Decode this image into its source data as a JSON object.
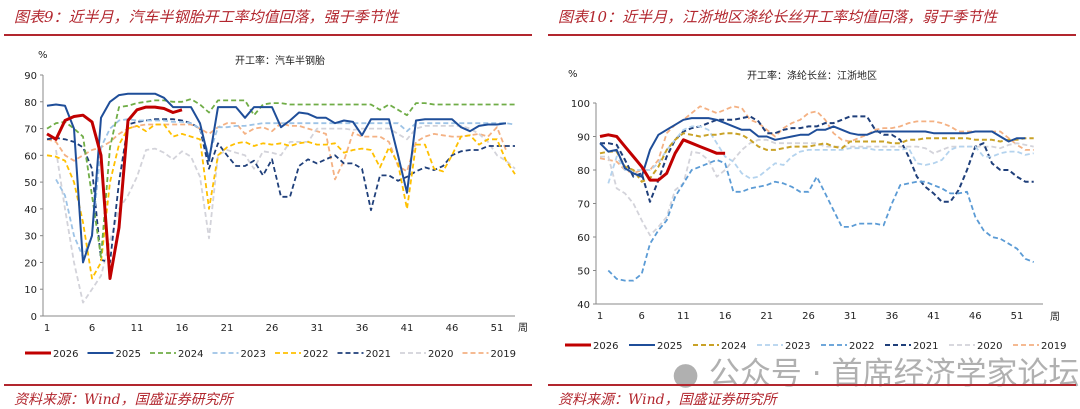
{
  "left": {
    "figure_title": "图表9：近半月，汽车半钢胎开工率均值回落，强于季节性",
    "source": "资料来源：Wind，国盛证券研究所"
  },
  "right": {
    "figure_title": "图表10：近半月，江浙地区涤纶长丝开工率均值回落，弱于季节性",
    "source": "资料来源：Wind，国盛证券研究所"
  },
  "watermark": "公众号 · 首席经济学家论坛",
  "colors": {
    "2026": "#c00000",
    "2025": "#1f4e99",
    "2024": "#70ad47",
    "2023": "#9dc3e6",
    "2022": "#ffc000",
    "2021": "#1f3f7a",
    "2020": "#d3d3da",
    "2019": "#f4b183"
  },
  "chart_data": [
    {
      "type": "line",
      "title": "开工率：汽车半钢胎",
      "ylabel": "%",
      "xlabel": "周",
      "ylim": [
        0,
        90
      ],
      "yticks": [
        0,
        10,
        20,
        30,
        40,
        50,
        60,
        70,
        80,
        90
      ],
      "xticks": [
        1,
        6,
        11,
        16,
        21,
        26,
        31,
        36,
        41,
        46,
        51
      ],
      "xlim": [
        1,
        53
      ],
      "legend": "bottom",
      "grid": false,
      "series": [
        {
          "name": "2026",
          "style": "solid",
          "width": 3,
          "color": "#c00000",
          "values": [
            68,
            66,
            73,
            74.5,
            75,
            72.5,
            60,
            14,
            33,
            73,
            77,
            78,
            78,
            77.5,
            76,
            77
          ]
        },
        {
          "name": "2025",
          "style": "solid",
          "width": 2,
          "color": "#1f4e99",
          "values": [
            78.5,
            79,
            78.5,
            70,
            20,
            30,
            74,
            80,
            82.5,
            83,
            83,
            83,
            83,
            81.5,
            78,
            78,
            78,
            72,
            58,
            78,
            78,
            78,
            74,
            78,
            78,
            78,
            70.5,
            73,
            76,
            75.5,
            74,
            74,
            72,
            73,
            72.5,
            67.5,
            73.5,
            73.5,
            73.5,
            60,
            46,
            73,
            73.5,
            73.5,
            73.5,
            73.5,
            70.5,
            69,
            71,
            71.5,
            71.5,
            72
          ]
        },
        {
          "name": "2024",
          "style": "dash",
          "width": 1.8,
          "color": "#70ad47",
          "values": [
            70,
            72,
            72.5,
            70,
            67,
            45,
            22,
            63,
            78,
            78.5,
            79.5,
            80,
            80.5,
            80.5,
            80,
            80,
            81,
            79,
            76,
            80.5,
            80.5,
            80.5,
            80.5,
            75,
            79,
            79.5,
            79.5,
            79,
            79,
            79,
            79,
            79,
            79,
            79,
            79,
            79,
            79,
            77,
            79,
            77,
            75,
            79.5,
            79.5,
            79,
            79,
            79,
            79,
            79,
            79,
            79,
            79,
            79,
            79
          ]
        },
        {
          "name": "2023",
          "style": "dash",
          "width": 1.8,
          "color": "#9dc3e6",
          "values": [
            null,
            51,
            45,
            30,
            22,
            30,
            63,
            70,
            73,
            73.5,
            73,
            73,
            73,
            73,
            72.5,
            72.5,
            72,
            70,
            60,
            70.5,
            70.5,
            71,
            71,
            71.5,
            72,
            72,
            72,
            72,
            72,
            72,
            72,
            72,
            72,
            72,
            72,
            72,
            72,
            72,
            72,
            72,
            69,
            72,
            72,
            72,
            72,
            72,
            72,
            72,
            72,
            72,
            72,
            72,
            71.5
          ]
        },
        {
          "name": "2022",
          "style": "dash",
          "width": 1.8,
          "color": "#ffc000",
          "values": [
            60,
            59.5,
            58,
            50,
            35,
            14,
            20,
            50,
            64,
            70,
            71,
            69,
            71.5,
            71.5,
            67,
            68,
            67,
            66,
            40,
            60,
            63,
            64.5,
            65,
            63.5,
            64.5,
            64,
            64.5,
            63.5,
            64.5,
            65,
            64,
            64,
            64.5,
            61,
            62,
            62.5,
            62,
            55.5,
            63,
            57,
            40,
            64,
            64,
            55,
            54,
            60,
            67,
            67.5,
            64,
            66,
            66,
            58,
            53
          ]
        },
        {
          "name": "2021",
          "style": "dash",
          "width": 1.8,
          "color": "#1f3f7a",
          "values": [
            66,
            66.5,
            66,
            65,
            63,
            55,
            21,
            20,
            50,
            71.5,
            72.5,
            73,
            73.5,
            73.5,
            73.5,
            73,
            72,
            70,
            55,
            64.5,
            60,
            56,
            56,
            58,
            52.5,
            58.5,
            44.5,
            44.5,
            56,
            58.5,
            57,
            58.5,
            60,
            57,
            57,
            55,
            39.5,
            52.5,
            52.5,
            50.5,
            52,
            54,
            55.5,
            54.5,
            56,
            60,
            61.5,
            62,
            62,
            63.5,
            63.5,
            63.5,
            63.5
          ]
        },
        {
          "name": "2020",
          "style": "dash",
          "width": 1.8,
          "color": "#d3d3da",
          "values": [
            null,
            62,
            40,
            20,
            5,
            10,
            15,
            28,
            40,
            45,
            52,
            62,
            62.5,
            61,
            58.5,
            61.5,
            59.5,
            52,
            29,
            60,
            62,
            61,
            60,
            55,
            61.5,
            61,
            60,
            65,
            65,
            65,
            70,
            70,
            70,
            70,
            69.5,
            70,
            70,
            70,
            70,
            68,
            66,
            70,
            71,
            71,
            71,
            71,
            71,
            70,
            68,
            65,
            60,
            58,
            55
          ]
        },
        {
          "name": "2019",
          "style": "dash",
          "width": 1.8,
          "color": "#f4b183",
          "values": [
            66,
            65,
            60,
            58,
            60,
            62,
            63,
            65,
            68,
            70,
            71,
            71.5,
            71.5,
            71.5,
            71.5,
            71.5,
            71.5,
            70,
            68,
            70.5,
            72,
            72,
            68,
            70,
            70.5,
            69,
            72,
            71,
            71,
            70,
            69,
            68,
            51,
            58,
            68.5,
            67,
            67,
            67,
            65,
            56,
            54,
            65,
            67,
            68,
            67.5,
            67,
            67,
            67.5,
            68,
            67,
            70.5,
            62
          ]
        }
      ]
    },
    {
      "type": "line",
      "title": "开工率：涤纶长丝：江浙地区",
      "ylabel": "%",
      "xlabel": "周",
      "ylim": [
        40,
        100
      ],
      "yticks": [
        40,
        50,
        60,
        70,
        80,
        90,
        100
      ],
      "xticks": [
        1,
        6,
        11,
        16,
        21,
        26,
        31,
        36,
        41,
        46,
        51
      ],
      "xlim": [
        1,
        53
      ],
      "legend": "bottom",
      "grid": false,
      "series": [
        {
          "name": "2026",
          "style": "solid",
          "width": 3,
          "color": "#c00000",
          "values": [
            90,
            90.5,
            90,
            87,
            84,
            81,
            77,
            77,
            79,
            85,
            89,
            88,
            87,
            86,
            85,
            85
          ]
        },
        {
          "name": "2025",
          "style": "solid",
          "width": 2,
          "color": "#1f4e99",
          "values": [
            88,
            85.5,
            86,
            80.5,
            79,
            78,
            86,
            90.5,
            92,
            93.5,
            95,
            95.5,
            95.5,
            95.5,
            95,
            94,
            93,
            92,
            92,
            90,
            90,
            89,
            89.5,
            90,
            90.5,
            90.5,
            92,
            92,
            93,
            92,
            91,
            90.5,
            90.5,
            91.5,
            91.5,
            91.5,
            91.5,
            91.5,
            91.5,
            91.5,
            91,
            91,
            91,
            91,
            91,
            91.5,
            91.5,
            91.5,
            90,
            88.5,
            89.5,
            89.5
          ]
        },
        {
          "name": "2024",
          "style": "dash",
          "width": 2,
          "color": "#c9a227",
          "values": [
            85,
            85.5,
            85.5,
            81,
            80,
            76.5,
            77.5,
            81,
            86,
            89,
            91,
            90.5,
            90,
            90.5,
            90.5,
            91,
            91,
            90.5,
            89,
            87,
            86,
            86,
            86.5,
            87,
            87,
            87,
            87.5,
            88,
            87,
            86.5,
            88.5,
            88.5,
            88.5,
            88.5,
            88.5,
            88,
            88,
            89,
            89,
            89.5,
            89.5,
            89.5,
            89.5,
            89.5,
            89.5,
            89,
            89,
            89,
            88.5,
            89,
            89,
            89.5,
            89.5
          ]
        },
        {
          "name": "2023",
          "style": "dash",
          "width": 1.8,
          "color": "#b4d3ee",
          "values": [
            null,
            76,
            84,
            80,
            80,
            80,
            80,
            82,
            86,
            89,
            92,
            93,
            93,
            92,
            88,
            84,
            82.5,
            79,
            77.5,
            78,
            80,
            82,
            81.5,
            84,
            85.5,
            86,
            86,
            86,
            86,
            86,
            86.5,
            86.5,
            86.5,
            86,
            86,
            86,
            86,
            86.5,
            82,
            81.5,
            82,
            83,
            86,
            87,
            87,
            87,
            84,
            84,
            85,
            85.5,
            85.5,
            84.5,
            85
          ]
        },
        {
          "name": "2022",
          "style": "dash",
          "width": 1.8,
          "color": "#5b9bd5",
          "values": [
            null,
            50,
            47.5,
            47,
            47,
            49,
            58,
            62,
            65,
            72,
            76,
            80,
            81,
            82,
            83,
            82,
            73.5,
            73.5,
            74.5,
            75,
            75.5,
            76.5,
            76,
            75,
            73.5,
            73.5,
            78,
            73,
            68,
            63,
            63,
            64,
            64,
            64,
            63.5,
            70,
            75.5,
            76,
            76.5,
            76.5,
            75.5,
            74.5,
            73,
            73,
            73.5,
            66,
            62,
            60,
            59.5,
            58,
            56.5,
            53.5,
            52.5
          ]
        },
        {
          "name": "2021",
          "style": "dash",
          "width": 2,
          "color": "#1f3f7a",
          "values": [
            88,
            88,
            87.5,
            83,
            78,
            79,
            70.5,
            77,
            84,
            89,
            91.5,
            92.5,
            93,
            94,
            95,
            95,
            95,
            95.5,
            96,
            94.5,
            91,
            91,
            92,
            92.5,
            92.5,
            93,
            93,
            94,
            94,
            95,
            96,
            96,
            96,
            92,
            90.5,
            90.5,
            89,
            84,
            78,
            75,
            73,
            70.5,
            70.5,
            74,
            80,
            87,
            88,
            82,
            80,
            80,
            78,
            76.5,
            76.5
          ]
        },
        {
          "name": "2020",
          "style": "dash",
          "width": 1.8,
          "color": "#d3d3da",
          "values": [
            84,
            84,
            74.5,
            73,
            70,
            65,
            60.5,
            63,
            66,
            74,
            76,
            85.5,
            85,
            83,
            78,
            80,
            83,
            86,
            88,
            89,
            89,
            88,
            88,
            88,
            88,
            88,
            88,
            87,
            87,
            87,
            87,
            87,
            87,
            87,
            87,
            87,
            87,
            87,
            87,
            86.5,
            85,
            86,
            87,
            87,
            87,
            87,
            87,
            87,
            86.5,
            87.5,
            88,
            87.5,
            87
          ]
        },
        {
          "name": "2019",
          "style": "dash",
          "width": 1.8,
          "color": "#f4b183",
          "values": [
            83.5,
            83,
            82.5,
            80,
            79,
            80,
            80,
            83,
            91,
            93.5,
            95,
            97,
            99,
            98,
            97,
            98,
            99,
            98.5,
            95,
            94,
            92,
            90,
            92.5,
            94,
            95,
            97,
            97.5,
            95,
            91,
            89,
            88.5,
            89.5,
            90.5,
            92,
            92.5,
            92.5,
            93,
            94,
            94.5,
            94.5,
            94.5,
            94,
            93,
            91.5,
            91.5,
            91.5,
            91.5,
            91.5,
            91.5,
            89.5,
            87.5,
            86,
            86
          ]
        }
      ]
    }
  ]
}
